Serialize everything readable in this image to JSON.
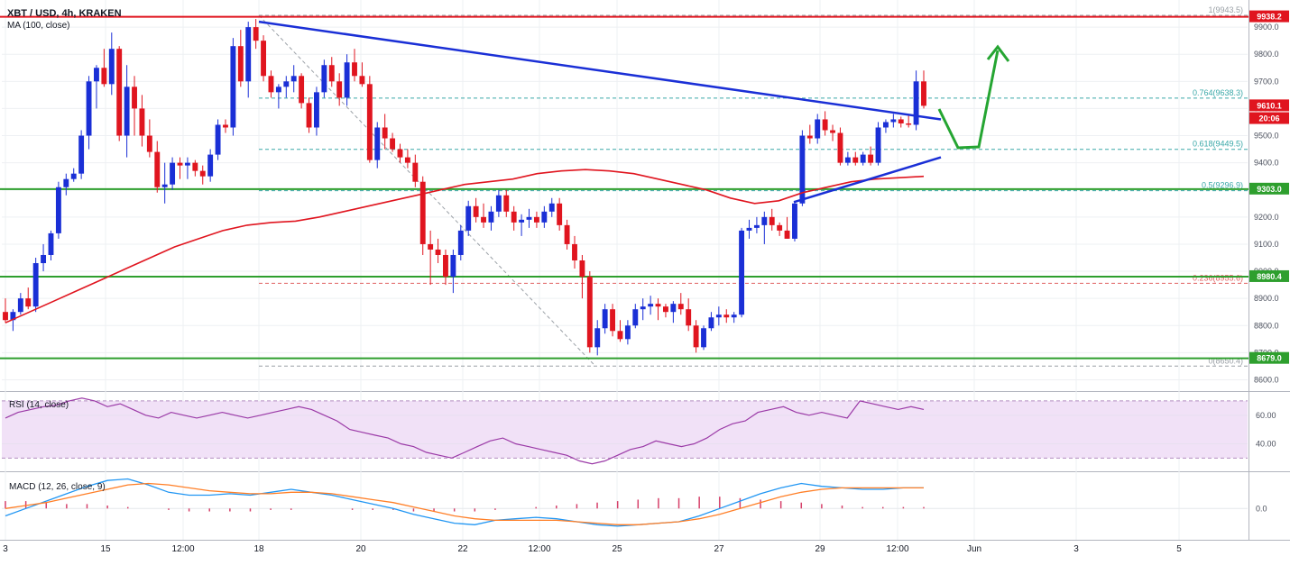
{
  "header": {
    "symbol_line": "XBT / USD, 4h, KRAKEN",
    "ma_label": "MA (100, close)"
  },
  "rsi_pane": {
    "label": "RSI (14, close)"
  },
  "macd_pane": {
    "label": "MACD (12, 26, close, 9)"
  },
  "colors": {
    "up_candle": "#1a2fd6",
    "down_candle": "#e0151f",
    "ma_line": "#e0151f",
    "trendline": "#1a2fd6",
    "support_lines": "#2e9f2e",
    "resistance_line": "#e0151f",
    "fib_lines": "#3aa8a8",
    "rsi_line": "#9b3aa7",
    "rsi_band": "#f1e1f7",
    "macd_line": "#2196f3",
    "signal_line": "#ff7f27",
    "macd_hist": "#d6406a",
    "projection_arrow": "#25a532"
  },
  "chart_data": [
    {
      "type": "candlestick",
      "title": "XBT / USD, 4h, KRAKEN",
      "x_ticks": [
        "3",
        "15",
        "12:00",
        "18",
        "20",
        "22",
        "12:00",
        "25",
        "27",
        "29",
        "12:00",
        "Jun",
        "3",
        "5"
      ],
      "y_ticks": [
        8600,
        8700,
        8800,
        8900,
        9000,
        9100,
        9200,
        9300,
        9400,
        9500,
        9600,
        9700,
        9800,
        9900
      ],
      "ylim": [
        8565,
        10000
      ],
      "price_tags": [
        {
          "text": "9938.2",
          "value": 9938.2,
          "color": "#e0151f"
        },
        {
          "text": "9610.1",
          "value": 9610.1,
          "color": "#e0151f"
        },
        {
          "text": "20:06",
          "value": 9563,
          "color": "#e0151f"
        },
        {
          "text": "9303.0",
          "value": 9303.0,
          "color": "#2e9f2e"
        },
        {
          "text": "8980.4",
          "value": 8980.4,
          "color": "#2e9f2e"
        },
        {
          "text": "8679.0",
          "value": 8679.0,
          "color": "#2e9f2e"
        }
      ],
      "horizontal_levels": [
        {
          "value": 9938.2,
          "kind": "resistance"
        },
        {
          "value": 9303.0,
          "kind": "support"
        },
        {
          "value": 8980.4,
          "kind": "support"
        },
        {
          "value": 8679.0,
          "kind": "support"
        }
      ],
      "fibonacci": [
        {
          "label": "1(9943.5)",
          "value": 9943.5
        },
        {
          "label": "0.764(9638.3)",
          "value": 9638.3
        },
        {
          "label": "0.618(9449.5)",
          "value": 9449.5
        },
        {
          "label": "0.5(9296.9)",
          "value": 9296.9
        },
        {
          "label": "0.236(8955.6)",
          "value": 8955.6
        },
        {
          "label": "0(8650.4)",
          "value": 8650.4
        }
      ],
      "candles": [
        [
          8850,
          8900,
          8810,
          8820
        ],
        [
          8820,
          8860,
          8780,
          8850
        ],
        [
          8850,
          8920,
          8840,
          8900
        ],
        [
          8900,
          8940,
          8860,
          8870
        ],
        [
          8870,
          9050,
          8850,
          9030
        ],
        [
          9030,
          9100,
          9000,
          9060
        ],
        [
          9060,
          9150,
          9040,
          9140
        ],
        [
          9140,
          9330,
          9120,
          9310
        ],
        [
          9310,
          9360,
          9280,
          9340
        ],
        [
          9340,
          9380,
          9330,
          9360
        ],
        [
          9360,
          9520,
          9340,
          9500
        ],
        [
          9500,
          9720,
          9450,
          9700
        ],
        [
          9700,
          9760,
          9600,
          9750
        ],
        [
          9750,
          9820,
          9680,
          9690
        ],
        [
          9690,
          9880,
          9650,
          9820
        ],
        [
          9820,
          9830,
          9480,
          9500
        ],
        [
          9500,
          9760,
          9420,
          9680
        ],
        [
          9680,
          9720,
          9500,
          9600
        ],
        [
          9600,
          9650,
          9460,
          9500
        ],
        [
          9500,
          9560,
          9420,
          9440
        ],
        [
          9440,
          9480,
          9290,
          9310
        ],
        [
          9310,
          9400,
          9250,
          9320
        ],
        [
          9320,
          9420,
          9300,
          9400
        ],
        [
          9400,
          9420,
          9340,
          9390
        ],
        [
          9390,
          9420,
          9340,
          9400
        ],
        [
          9400,
          9410,
          9350,
          9370
        ],
        [
          9370,
          9390,
          9320,
          9350
        ],
        [
          9350,
          9450,
          9330,
          9430
        ],
        [
          9430,
          9560,
          9410,
          9540
        ],
        [
          9540,
          9560,
          9510,
          9530
        ],
        [
          9530,
          9860,
          9500,
          9830
        ],
        [
          9830,
          9890,
          9680,
          9700
        ],
        [
          9700,
          9920,
          9640,
          9900
        ],
        [
          9900,
          9930,
          9820,
          9850
        ],
        [
          9850,
          9870,
          9700,
          9720
        ],
        [
          9720,
          9740,
          9640,
          9660
        ],
        [
          9660,
          9690,
          9600,
          9680
        ],
        [
          9680,
          9720,
          9640,
          9700
        ],
        [
          9700,
          9760,
          9660,
          9720
        ],
        [
          9720,
          9730,
          9600,
          9620
        ],
        [
          9620,
          9640,
          9510,
          9530
        ],
        [
          9530,
          9680,
          9500,
          9660
        ],
        [
          9660,
          9780,
          9640,
          9760
        ],
        [
          9760,
          9790,
          9680,
          9700
        ],
        [
          9700,
          9730,
          9610,
          9640
        ],
        [
          9640,
          9800,
          9610,
          9770
        ],
        [
          9770,
          9820,
          9700,
          9720
        ],
        [
          9720,
          9770,
          9680,
          9690
        ],
        [
          9690,
          9720,
          9400,
          9410
        ],
        [
          9410,
          9550,
          9380,
          9530
        ],
        [
          9530,
          9580,
          9450,
          9490
        ],
        [
          9490,
          9510,
          9440,
          9450
        ],
        [
          9450,
          9470,
          9400,
          9420
        ],
        [
          9420,
          9450,
          9380,
          9400
        ],
        [
          9400,
          9430,
          9310,
          9330
        ],
        [
          9330,
          9350,
          9060,
          9100
        ],
        [
          9100,
          9150,
          8950,
          9080
        ],
        [
          9080,
          9120,
          9030,
          9060
        ],
        [
          9060,
          9080,
          8950,
          8980
        ],
        [
          8980,
          9080,
          8920,
          9060
        ],
        [
          9060,
          9170,
          9040,
          9150
        ],
        [
          9150,
          9260,
          9130,
          9240
        ],
        [
          9240,
          9270,
          9180,
          9200
        ],
        [
          9200,
          9250,
          9160,
          9180
        ],
        [
          9180,
          9240,
          9150,
          9220
        ],
        [
          9220,
          9300,
          9200,
          9280
        ],
        [
          9280,
          9300,
          9200,
          9220
        ],
        [
          9220,
          9240,
          9150,
          9180
        ],
        [
          9180,
          9210,
          9130,
          9190
        ],
        [
          9190,
          9230,
          9160,
          9200
        ],
        [
          9200,
          9220,
          9160,
          9180
        ],
        [
          9180,
          9240,
          9160,
          9220
        ],
        [
          9220,
          9270,
          9200,
          9250
        ],
        [
          9250,
          9270,
          9150,
          9170
        ],
        [
          9170,
          9190,
          9080,
          9100
        ],
        [
          9100,
          9130,
          9010,
          9040
        ],
        [
          9040,
          9060,
          8900,
          8980
        ],
        [
          8980,
          9000,
          8700,
          8720
        ],
        [
          8720,
          8820,
          8690,
          8790
        ],
        [
          8790,
          8880,
          8770,
          8860
        ],
        [
          8860,
          8880,
          8760,
          8780
        ],
        [
          8780,
          8820,
          8740,
          8750
        ],
        [
          8750,
          8820,
          8730,
          8800
        ],
        [
          8800,
          8880,
          8790,
          8860
        ],
        [
          8860,
          8900,
          8820,
          8870
        ],
        [
          8870,
          8910,
          8840,
          8880
        ],
        [
          8880,
          8900,
          8820,
          8870
        ],
        [
          8870,
          8880,
          8830,
          8850
        ],
        [
          8850,
          8890,
          8810,
          8880
        ],
        [
          8880,
          8920,
          8840,
          8860
        ],
        [
          8860,
          8900,
          8780,
          8800
        ],
        [
          8800,
          8820,
          8700,
          8720
        ],
        [
          8720,
          8800,
          8710,
          8790
        ],
        [
          8790,
          8850,
          8780,
          8830
        ],
        [
          8830,
          8870,
          8800,
          8840
        ],
        [
          8840,
          8860,
          8810,
          8830
        ],
        [
          8830,
          8850,
          8810,
          8840
        ],
        [
          8840,
          9160,
          8830,
          9150
        ],
        [
          9150,
          9190,
          9120,
          9160
        ],
        [
          9160,
          9200,
          9140,
          9170
        ],
        [
          9170,
          9220,
          9100,
          9200
        ],
        [
          9200,
          9230,
          9150,
          9170
        ],
        [
          9170,
          9180,
          9130,
          9150
        ],
        [
          9150,
          9200,
          9120,
          9120
        ],
        [
          9120,
          9260,
          9110,
          9250
        ],
        [
          9250,
          9520,
          9240,
          9500
        ],
        [
          9500,
          9540,
          9470,
          9490
        ],
        [
          9490,
          9580,
          9470,
          9560
        ],
        [
          9560,
          9590,
          9500,
          9520
        ],
        [
          9520,
          9540,
          9480,
          9510
        ],
        [
          9510,
          9530,
          9390,
          9400
        ],
        [
          9400,
          9440,
          9390,
          9420
        ],
        [
          9420,
          9440,
          9390,
          9400
        ],
        [
          9400,
          9440,
          9390,
          9430
        ],
        [
          9430,
          9460,
          9390,
          9400
        ],
        [
          9400,
          9550,
          9390,
          9530
        ],
        [
          9530,
          9560,
          9510,
          9550
        ],
        [
          9550,
          9580,
          9530,
          9560
        ],
        [
          9560,
          9570,
          9530,
          9545
        ],
        [
          9545,
          9580,
          9530,
          9540
        ],
        [
          9540,
          9740,
          9520,
          9700
        ],
        [
          9700,
          9740,
          9600,
          9610
        ]
      ],
      "ma_100": [
        8810,
        8850,
        8890,
        8930,
        8970,
        9010,
        9050,
        9090,
        9120,
        9150,
        9170,
        9180,
        9185,
        9200,
        9220,
        9240,
        9260,
        9280,
        9300,
        9320,
        9330,
        9340,
        9360,
        9370,
        9375,
        9370,
        9360,
        9340,
        9320,
        9300,
        9270,
        9250,
        9260,
        9290,
        9310,
        9330,
        9340,
        9345,
        9350
      ],
      "trendlines": [
        {
          "name": "descending",
          "from": [
            9920,
            0
          ],
          "to": [
            9560,
            1
          ]
        },
        {
          "name": "ascending",
          "from": [
            9255,
            0
          ],
          "to": [
            9420,
            1
          ]
        }
      ]
    },
    {
      "type": "line",
      "name": "RSI (14, close)",
      "ylim": [
        22,
        75
      ],
      "y_ticks": [
        40,
        60
      ],
      "y_tick_labels": [
        "40.00",
        "60.00"
      ],
      "values": [
        58,
        62,
        64,
        66,
        67,
        70,
        72,
        70,
        66,
        68,
        64,
        60,
        58,
        62,
        60,
        58,
        60,
        62,
        60,
        58,
        60,
        62,
        64,
        66,
        64,
        60,
        56,
        50,
        48,
        46,
        44,
        40,
        38,
        34,
        32,
        30,
        34,
        38,
        42,
        44,
        40,
        38,
        36,
        34,
        32,
        28,
        26,
        28,
        32,
        36,
        38,
        42,
        40,
        38,
        40,
        44,
        50,
        54,
        56,
        62,
        64,
        66,
        62,
        60,
        62,
        60,
        58,
        70,
        68,
        66,
        64,
        66,
        64
      ],
      "band": [
        30,
        70
      ]
    },
    {
      "type": "line",
      "name": "MACD (12, 26, close, 9)",
      "ylim": [
        -40,
        48
      ],
      "y_ticks": [
        0
      ],
      "y_tick_labels": [
        "0.0"
      ],
      "series": [
        {
          "name": "MACD",
          "values": [
            -10,
            0,
            10,
            20,
            30,
            38,
            40,
            32,
            22,
            18,
            18,
            20,
            18,
            22,
            26,
            22,
            18,
            12,
            6,
            0,
            -8,
            -14,
            -20,
            -22,
            -16,
            -14,
            -12,
            -14,
            -18,
            -22,
            -24,
            -22,
            -20,
            -18,
            -10,
            0,
            10,
            20,
            28,
            34,
            30,
            28,
            26,
            26,
            28,
            28
          ]
        },
        {
          "name": "Signal",
          "values": [
            0,
            4,
            8,
            14,
            20,
            26,
            32,
            34,
            32,
            28,
            24,
            22,
            20,
            20,
            22,
            22,
            20,
            16,
            12,
            8,
            2,
            -4,
            -10,
            -14,
            -16,
            -16,
            -16,
            -16,
            -18,
            -20,
            -22,
            -22,
            -20,
            -18,
            -14,
            -8,
            0,
            8,
            16,
            22,
            26,
            28,
            28,
            28,
            28,
            28
          ]
        },
        {
          "name": "Histogram",
          "values": [
            10,
            10,
            8,
            6,
            6,
            4,
            2,
            0,
            -2,
            -4,
            -4,
            -4,
            -4,
            -2,
            -2,
            0,
            0,
            -2,
            -2,
            -2,
            -4,
            -4,
            -4,
            -4,
            -2,
            0,
            2,
            4,
            6,
            8,
            10,
            12,
            14,
            14,
            16,
            16,
            14,
            12,
            10,
            8,
            6,
            4,
            2,
            2,
            2,
            2
          ]
        }
      ]
    }
  ]
}
